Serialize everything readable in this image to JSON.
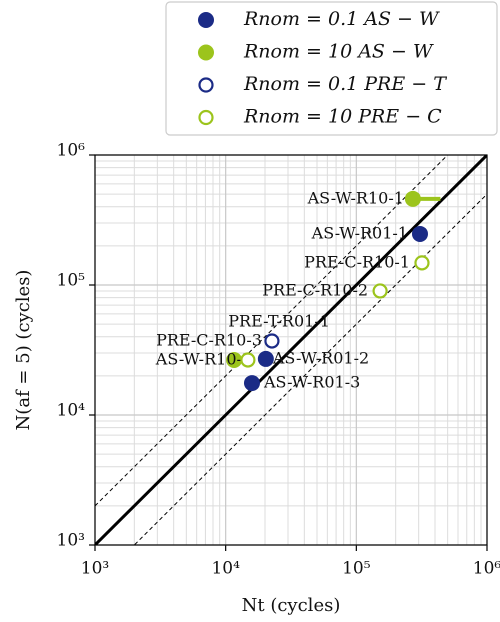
{
  "chart_data": {
    "type": "scatter",
    "x_label": "Nt (cycles)",
    "y_label": "N(af = 5) (cycles)",
    "log_x": true,
    "log_y": true,
    "grid": true,
    "xlim": [
      1000,
      1000000
    ],
    "ylim": [
      1000,
      1000000
    ],
    "xticks": [
      {
        "value": 1000,
        "label": "10³"
      },
      {
        "value": 10000,
        "label": "10⁴"
      },
      {
        "value": 100000,
        "label": "10⁵"
      },
      {
        "value": 1000000,
        "label": "10⁶"
      }
    ],
    "yticks": [
      {
        "value": 1000,
        "label": "10³"
      },
      {
        "value": 10000,
        "label": "10⁴"
      },
      {
        "value": 100000,
        "label": "10⁵"
      },
      {
        "value": 1000000,
        "label": "10⁶"
      }
    ],
    "reference_lines": [
      {
        "factor": 1,
        "style": "solid"
      },
      {
        "factor": 2,
        "style": "dashed"
      },
      {
        "factor": 0.5,
        "style": "dashed"
      }
    ],
    "legend_position": "top-right",
    "series": [
      {
        "name": "Rnom = 0.1 AS − W",
        "color": "#1b2b86",
        "filled": true,
        "labels": [
          "AS-W-R01-1",
          "AS-W-R01-2",
          "AS-W-R01-3"
        ],
        "x": [
          307000,
          20300,
          15900
        ],
        "y": [
          247000,
          27000,
          17600
        ]
      },
      {
        "name": "Rnom = 10 AS − W",
        "color": "#9cc41c",
        "filled": true,
        "labels": [
          "AS-W-R10-1",
          "AS-W-R10-2"
        ],
        "x": [
          271000,
          11600
        ],
        "y": [
          460000,
          26500
        ],
        "x_high": [
          440000,
          null
        ]
      },
      {
        "name": "Rnom = 0.1 PRE − T",
        "color": "#1b2b86",
        "filled": false,
        "labels": [
          "PRE-T-R01-1"
        ],
        "x": [
          22600
        ],
        "y": [
          37100
        ]
      },
      {
        "name": "Rnom = 10 PRE − C",
        "color": "#9cc41c",
        "filled": false,
        "labels": [
          "PRE-C-R10-1",
          "PRE-C-R10-2",
          "PRE-C-R10-3"
        ],
        "x": [
          318000,
          152000,
          14800
        ],
        "y": [
          148000,
          90000,
          26500
        ]
      }
    ]
  }
}
